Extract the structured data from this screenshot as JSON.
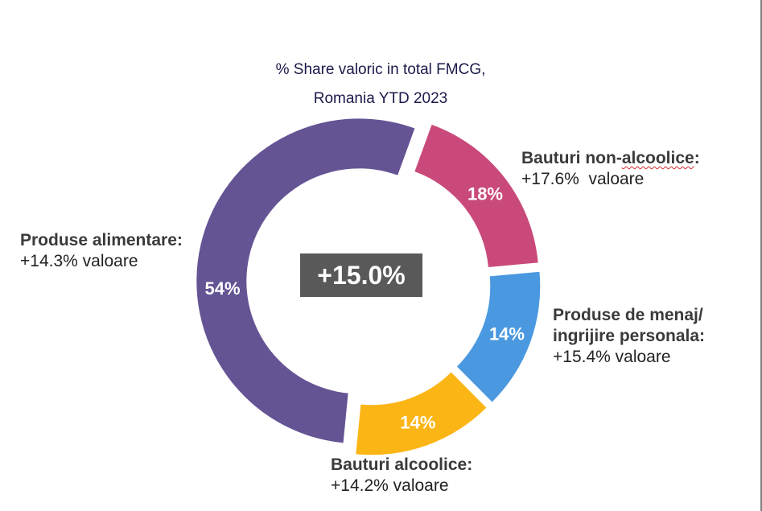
{
  "chart_data": {
    "type": "pie",
    "variant": "donut",
    "title_lines": [
      "% Share valoric in total FMCG,",
      "Romania YTD 2023"
    ],
    "center_label": "+15.0%",
    "slices": [
      {
        "category_parts": [
          "Bauturi non-",
          "alcoolice",
          ":"
        ],
        "category_lines": [
          "Bauturi non-alcoolice:"
        ],
        "value": 18,
        "label": "18%",
        "change": "+17.6%  valoare",
        "color": "#c94a7a"
      },
      {
        "category_lines": [
          "Produse de menaj/",
          "ingrijire personala:"
        ],
        "value": 14,
        "label": "14%",
        "change": "+15.4% valoare",
        "color": "#4a99e0"
      },
      {
        "category_lines": [
          "Bauturi alcoolice:"
        ],
        "value": 14,
        "label": "14%",
        "change": "+14.2% valoare",
        "color": "#fbb515"
      },
      {
        "category_lines": [
          "Produse alimentare:"
        ],
        "value": 54,
        "label": "54%",
        "change": "+14.3% valoare",
        "color": "#655494"
      }
    ]
  }
}
